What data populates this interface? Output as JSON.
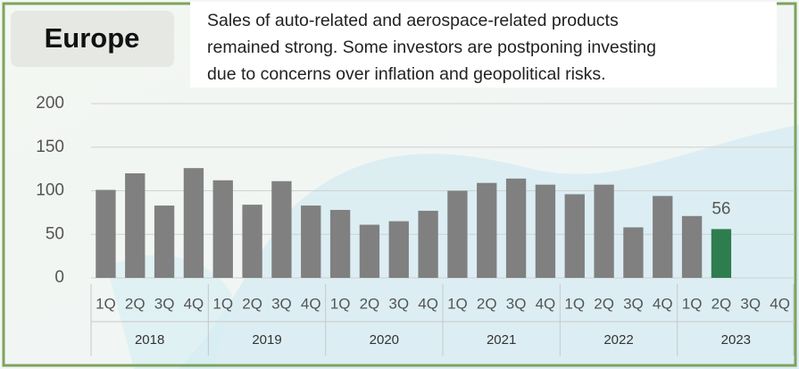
{
  "chart_data": {
    "type": "bar",
    "title": "Europe",
    "annotation": [
      "Sales of auto-related and aerospace-related products",
      "remained strong. Some investors are postponing investing",
      "due to concerns over inflation and geopolitical risks."
    ],
    "categories": [
      "1Q",
      "2Q",
      "3Q",
      "4Q",
      "1Q",
      "2Q",
      "3Q",
      "4Q",
      "1Q",
      "2Q",
      "3Q",
      "4Q",
      "1Q",
      "2Q",
      "3Q",
      "4Q",
      "1Q",
      "2Q",
      "3Q",
      "4Q",
      "1Q",
      "2Q",
      "3Q",
      "4Q"
    ],
    "years": [
      "2018",
      "2019",
      "2020",
      "2021",
      "2022",
      "2023"
    ],
    "values": [
      101,
      120,
      83,
      126,
      112,
      84,
      111,
      83,
      78,
      61,
      65,
      77,
      100,
      109,
      114,
      107,
      96,
      107,
      58,
      94,
      71,
      56,
      null,
      null
    ],
    "value_labels": [
      null,
      null,
      null,
      null,
      null,
      null,
      null,
      null,
      null,
      null,
      null,
      null,
      null,
      null,
      null,
      null,
      null,
      null,
      null,
      null,
      null,
      "56",
      null,
      null
    ],
    "colors": [
      "#808080",
      "#808080",
      "#808080",
      "#808080",
      "#808080",
      "#808080",
      "#808080",
      "#808080",
      "#808080",
      "#808080",
      "#808080",
      "#808080",
      "#808080",
      "#808080",
      "#808080",
      "#808080",
      "#808080",
      "#808080",
      "#808080",
      "#808080",
      "#808080",
      "#2e7d4f",
      null,
      null
    ],
    "ylim": [
      0,
      200
    ],
    "yticks": [
      0,
      50,
      100,
      150,
      200
    ],
    "grid": true
  }
}
